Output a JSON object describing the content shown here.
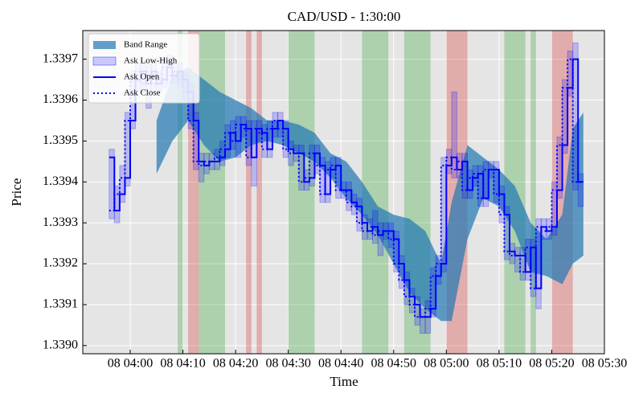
{
  "chart_data": {
    "type": "step",
    "title": "CAD/USD - 1:30:00",
    "xlabel": "Time",
    "ylabel": "Price",
    "xlim": [
      "08 03:51",
      "08 05:30"
    ],
    "xticks": [
      "08 04:00",
      "08 04:10",
      "08 04:20",
      "08 04:30",
      "08 04:40",
      "08 04:50",
      "08 05:00",
      "08 05:10",
      "08 05:20",
      "08 05:30"
    ],
    "ylim": [
      1.33898,
      1.33977
    ],
    "yticks": [
      {
        "value": 1.339,
        "label": "1.3390"
      },
      1.3391,
      1.3392,
      1.3393,
      1.3394,
      1.3395,
      1.3396,
      1.3397
    ],
    "grid": true,
    "legend": "upper left",
    "x": [
      "08 03:56",
      "08 03:57",
      "08 03:58",
      "08 03:59",
      "08 04:00",
      "08 04:01",
      "08 04:02",
      "08 04:03",
      "08 04:04",
      "08 04:05",
      "08 04:06",
      "08 04:07",
      "08 04:08",
      "08 04:09",
      "08 04:10",
      "08 04:11",
      "08 04:12",
      "08 04:13",
      "08 04:14",
      "08 04:15",
      "08 04:16",
      "08 04:17",
      "08 04:18",
      "08 04:19",
      "08 04:20",
      "08 04:21",
      "08 04:22",
      "08 04:23",
      "08 04:24",
      "08 04:25",
      "08 04:26",
      "08 04:27",
      "08 04:28",
      "08 04:29",
      "08 04:30",
      "08 04:31",
      "08 04:32",
      "08 04:33",
      "08 04:34",
      "08 04:35",
      "08 04:36",
      "08 04:37",
      "08 04:38",
      "08 04:39",
      "08 04:40",
      "08 04:41",
      "08 04:42",
      "08 04:43",
      "08 04:44",
      "08 04:45",
      "08 04:46",
      "08 04:47",
      "08 04:48",
      "08 04:49",
      "08 04:50",
      "08 04:51",
      "08 04:52",
      "08 04:53",
      "08 04:54",
      "08 04:55",
      "08 04:56",
      "08 04:57",
      "08 04:58",
      "08 04:59",
      "08 05:00",
      "08 05:01",
      "08 05:02",
      "08 05:03",
      "08 05:04",
      "08 05:05",
      "08 05:06",
      "08 05:07",
      "08 05:08",
      "08 05:09",
      "08 05:10",
      "08 05:11",
      "08 05:12",
      "08 05:13",
      "08 05:14",
      "08 05:15",
      "08 05:16",
      "08 05:17",
      "08 05:18",
      "08 05:19",
      "08 05:20",
      "08 05:21",
      "08 05:22",
      "08 05:23",
      "08 05:24",
      "08 05:25"
    ],
    "band": {
      "name": "Band Range",
      "color": "#1f77b4",
      "x": [
        "08 04:05",
        "08 04:08",
        "08 04:11",
        "08 04:14",
        "08 04:17",
        "08 04:20",
        "08 04:23",
        "08 04:26",
        "08 04:29",
        "08 04:32",
        "08 04:35",
        "08 04:38",
        "08 04:41",
        "08 04:44",
        "08 04:47",
        "08 04:50",
        "08 04:53",
        "08 04:56",
        "08 04:59",
        "08 05:01",
        "08 05:04",
        "08 05:07",
        "08 05:10",
        "08 05:13",
        "08 05:16",
        "08 05:19",
        "08 05:22",
        "08 05:24",
        "08 05:26"
      ],
      "upper": [
        1.33955,
        1.33966,
        1.33968,
        1.33965,
        1.33962,
        1.3396,
        1.33958,
        1.33955,
        1.33955,
        1.33954,
        1.33952,
        1.33947,
        1.33945,
        1.3394,
        1.33934,
        1.33932,
        1.33931,
        1.33928,
        1.3392,
        1.33935,
        1.33949,
        1.33946,
        1.33943,
        1.33939,
        1.3393,
        1.33926,
        1.33932,
        1.33953,
        1.33957
      ],
      "lower": [
        1.33942,
        1.3395,
        1.33955,
        1.33949,
        1.33945,
        1.33946,
        1.33949,
        1.3395,
        1.33949,
        1.33947,
        1.33945,
        1.33941,
        1.33936,
        1.33932,
        1.33927,
        1.3392,
        1.33913,
        1.33909,
        1.33906,
        1.33906,
        1.33926,
        1.33936,
        1.33934,
        1.33928,
        1.33918,
        1.33917,
        1.33915,
        1.3392,
        1.33922
      ]
    },
    "ask_range": {
      "name": "Ask Low-High",
      "color": "#0000ff",
      "low": [
        1.33931,
        1.3393,
        1.33935,
        1.33939,
        1.33953,
        1.33962,
        1.33962,
        1.33958,
        1.33962,
        1.33962,
        1.33963,
        1.33964,
        1.33964,
        1.33963,
        1.3396,
        1.33953,
        1.33943,
        1.3394,
        1.33942,
        1.33943,
        1.33943,
        1.33944,
        1.33946,
        1.33948,
        1.33946,
        1.33951,
        1.33944,
        1.33939,
        1.3395,
        1.33946,
        1.33946,
        1.33951,
        1.33951,
        1.33946,
        1.33944,
        1.33945,
        1.33938,
        1.33938,
        1.33939,
        1.33942,
        1.33935,
        1.33935,
        1.33941,
        1.33936,
        1.33936,
        1.33933,
        1.33932,
        1.33928,
        1.33926,
        1.33926,
        1.33925,
        1.33922,
        1.33926,
        1.33924,
        1.33918,
        1.33914,
        1.3391,
        1.33908,
        1.33905,
        1.33903,
        1.33903,
        1.33907,
        1.33915,
        1.33918,
        1.33942,
        1.33941,
        1.33941,
        1.33936,
        1.33936,
        1.33939,
        1.33934,
        1.33934,
        1.33941,
        1.33935,
        1.3393,
        1.33921,
        1.3392,
        1.33918,
        1.33916,
        1.33916,
        1.33912,
        1.33909,
        1.33926,
        1.33926,
        1.33927,
        1.33936,
        1.33947,
        1.33961,
        1.33938,
        1.33934
      ],
      "high": [
        1.33948,
        1.33939,
        1.33944,
        1.33957,
        1.33967,
        1.33969,
        1.3397,
        1.33969,
        1.33969,
        1.33967,
        1.3397,
        1.33971,
        1.33969,
        1.33969,
        1.33967,
        1.33964,
        1.33957,
        1.33947,
        1.33947,
        1.33947,
        1.33948,
        1.3395,
        1.33954,
        1.33955,
        1.33956,
        1.33956,
        1.33955,
        1.33955,
        1.33955,
        1.33954,
        1.33955,
        1.33957,
        1.33957,
        1.33955,
        1.3395,
        1.33949,
        1.33949,
        1.33943,
        1.33949,
        1.33949,
        1.33946,
        1.33945,
        1.33946,
        1.33946,
        1.3394,
        1.3394,
        1.33937,
        1.33936,
        1.33932,
        1.33931,
        1.33933,
        1.3393,
        1.3393,
        1.3393,
        1.33928,
        1.33922,
        1.33918,
        1.33914,
        1.33912,
        1.33909,
        1.33911,
        1.33919,
        1.33922,
        1.33946,
        1.33948,
        1.33962,
        1.33947,
        1.33947,
        1.33943,
        1.33944,
        1.33944,
        1.33945,
        1.33945,
        1.33945,
        1.33939,
        1.33934,
        1.33925,
        1.33924,
        1.33924,
        1.33926,
        1.33926,
        1.33931,
        1.33931,
        1.33931,
        1.3394,
        1.33951,
        1.33965,
        1.33972,
        1.33974,
        1.33942
      ]
    },
    "series": [
      {
        "name": "Ask Open",
        "color": "#0000ff",
        "values": [
          1.33946,
          1.33933,
          1.33937,
          1.33941,
          1.33955,
          1.33965,
          1.33967,
          1.33964,
          1.33967,
          1.33964,
          1.33965,
          1.33968,
          1.33966,
          1.33967,
          1.33965,
          1.33962,
          1.33955,
          1.33945,
          1.33944,
          1.33945,
          1.33945,
          1.33946,
          1.33948,
          1.33952,
          1.3395,
          1.33954,
          1.33953,
          1.33946,
          1.33953,
          1.33952,
          1.33948,
          1.33953,
          1.33955,
          1.33953,
          1.33948,
          1.33947,
          1.33947,
          1.3394,
          1.33941,
          1.33947,
          1.33944,
          1.33937,
          1.33943,
          1.33944,
          1.33938,
          1.33938,
          1.33935,
          1.33934,
          1.3393,
          1.33928,
          1.33929,
          1.33927,
          1.33928,
          1.33928,
          1.33926,
          1.3392,
          1.33916,
          1.33912,
          1.3391,
          1.33907,
          1.33907,
          1.33909,
          1.33917,
          1.3392,
          1.33944,
          1.33946,
          1.33943,
          1.33945,
          1.33938,
          1.33941,
          1.33942,
          1.33936,
          1.33943,
          1.33943,
          1.33937,
          1.33932,
          1.33923,
          1.33922,
          1.33922,
          1.33918,
          1.33924,
          1.33914,
          1.33929,
          1.33928,
          1.33929,
          1.33938,
          1.33949,
          1.33963,
          1.3397,
          1.3394
        ]
      },
      {
        "name": "Ask Close",
        "color": "#0000ff",
        "values": [
          1.33933,
          1.33937,
          1.33941,
          1.33955,
          1.33965,
          1.33967,
          1.33964,
          1.33967,
          1.33964,
          1.33965,
          1.33968,
          1.33966,
          1.33967,
          1.33965,
          1.33962,
          1.33955,
          1.33945,
          1.33944,
          1.33945,
          1.33945,
          1.33946,
          1.33948,
          1.33952,
          1.3395,
          1.33954,
          1.33953,
          1.33946,
          1.33953,
          1.33952,
          1.33948,
          1.33953,
          1.33955,
          1.33953,
          1.33948,
          1.33947,
          1.33947,
          1.3394,
          1.33941,
          1.33947,
          1.33944,
          1.33937,
          1.33943,
          1.33944,
          1.33938,
          1.33938,
          1.33935,
          1.33934,
          1.3393,
          1.33928,
          1.33929,
          1.33927,
          1.33928,
          1.33928,
          1.33926,
          1.3392,
          1.33916,
          1.33912,
          1.3391,
          1.33907,
          1.33907,
          1.33909,
          1.33917,
          1.3392,
          1.33944,
          1.33946,
          1.33943,
          1.33945,
          1.33938,
          1.33941,
          1.33942,
          1.33936,
          1.33943,
          1.33943,
          1.33937,
          1.33932,
          1.33923,
          1.33922,
          1.33922,
          1.33918,
          1.33924,
          1.33914,
          1.33929,
          1.33928,
          1.33929,
          1.33938,
          1.33949,
          1.33963,
          1.3397,
          1.3394,
          1.3394
        ]
      }
    ],
    "spans": [
      {
        "start": "08 04:09",
        "end": "08 04:10",
        "color": "#2ca02c"
      },
      {
        "start": "08 04:11",
        "end": "08 04:13",
        "color": "#d62728"
      },
      {
        "start": "08 04:13",
        "end": "08 04:18",
        "color": "#2ca02c"
      },
      {
        "start": "08 04:22",
        "end": "08 04:23",
        "color": "#d62728"
      },
      {
        "start": "08 04:24",
        "end": "08 04:25",
        "color": "#d62728"
      },
      {
        "start": "08 04:30",
        "end": "08 04:35",
        "color": "#2ca02c"
      },
      {
        "start": "08 04:44",
        "end": "08 04:49",
        "color": "#2ca02c"
      },
      {
        "start": "08 04:52",
        "end": "08 04:57",
        "color": "#2ca02c"
      },
      {
        "start": "08 05:00",
        "end": "08 05:04",
        "color": "#d62728"
      },
      {
        "start": "08 05:11",
        "end": "08 05:15",
        "color": "#2ca02c"
      },
      {
        "start": "08 05:16",
        "end": "08 05:17",
        "color": "#2ca02c"
      },
      {
        "start": "08 05:20",
        "end": "08 05:24",
        "color": "#d62728"
      }
    ]
  }
}
